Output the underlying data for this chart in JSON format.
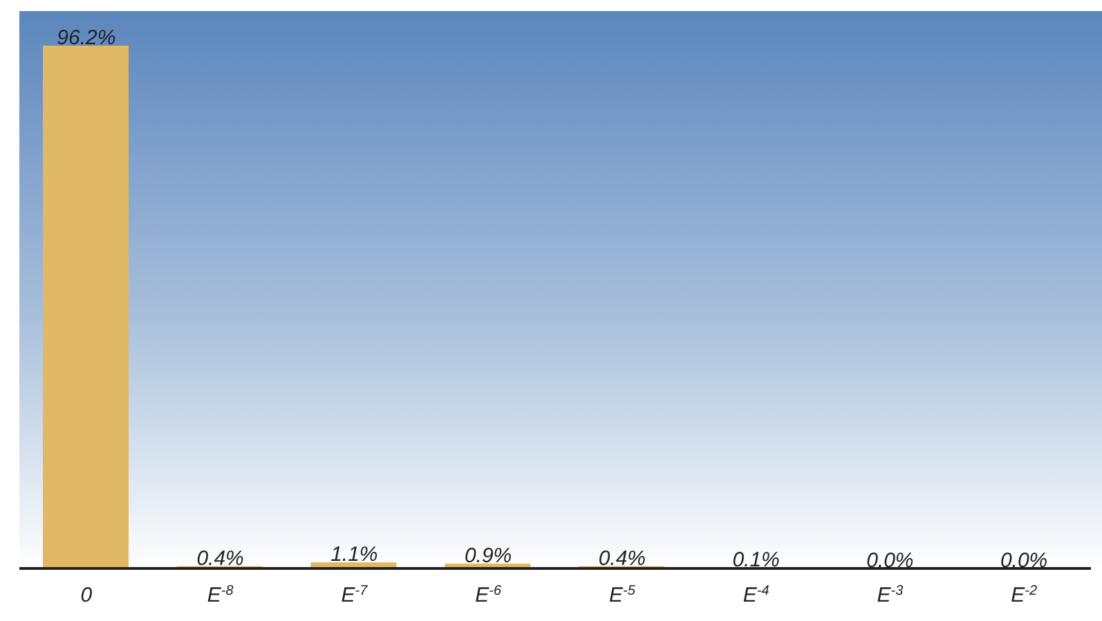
{
  "chart_data": {
    "type": "bar",
    "categories": [
      "0",
      "E$^{-8}$",
      "E$^{-7}$",
      "E$^{-6}$",
      "E$^{-5}$",
      "E$^{-4}$",
      "E$^{-3}$",
      "E$^{-2}$"
    ],
    "values": [
      96.2,
      0.4,
      1.1,
      0.9,
      0.4,
      0.1,
      0.0,
      0.0
    ],
    "value_labels": [
      "96.2%",
      "0.4%",
      "1.1%",
      "0.9%",
      "0.4%",
      "0.1%",
      "0.0%",
      "0.0%"
    ],
    "color": "#e0b866"
  }
}
